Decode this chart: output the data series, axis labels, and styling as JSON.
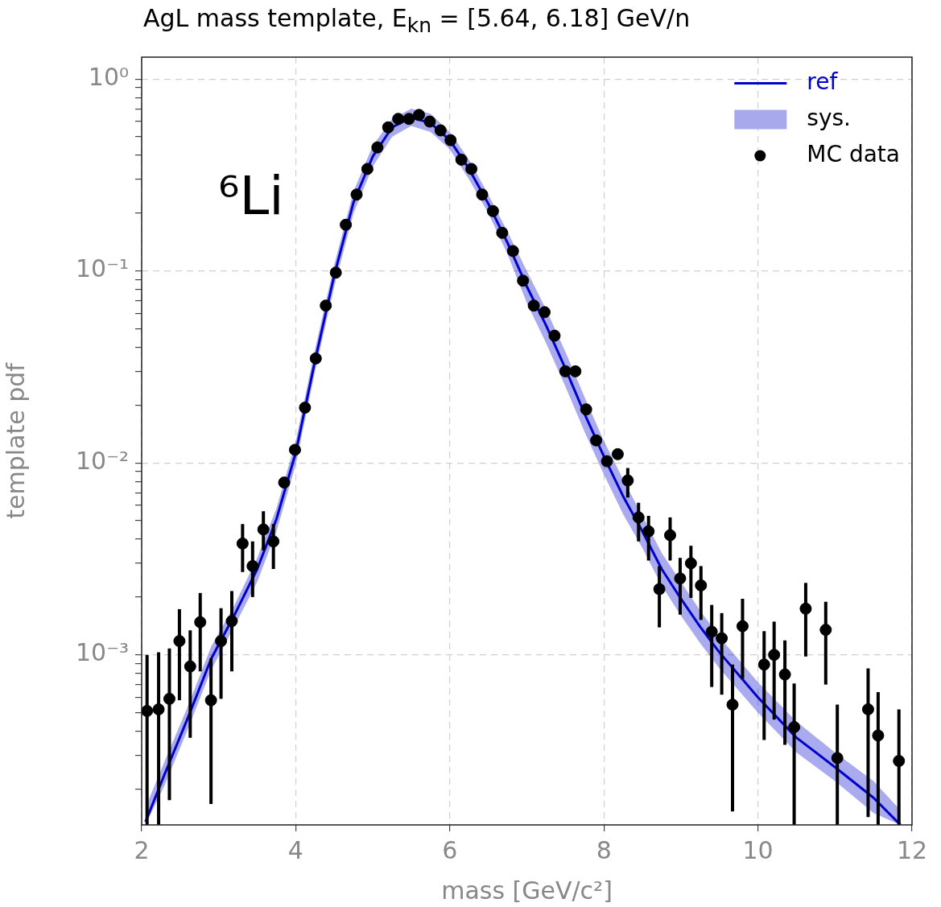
{
  "chart_data": {
    "type": "scatter",
    "title": "AgL mass template, E$_{kn}$ = [5.64, 6.18] GeV/n",
    "xlabel": "mass [GeV/c²]",
    "ylabel": "template pdf",
    "annotations": [
      "⁶Li"
    ],
    "xlim": [
      2,
      12
    ],
    "xticks": [
      2,
      4,
      6,
      8,
      10,
      12
    ],
    "ylim": [
      0.00013,
      1.3
    ],
    "yticks": [
      {
        "value": 0.0002,
        "label": null
      },
      {
        "value": 0.0003,
        "label": null
      },
      {
        "value": 0.0004,
        "label": null
      },
      {
        "value": 0.0005,
        "label": null
      },
      {
        "value": 0.0006,
        "label": null
      },
      {
        "value": 0.0007,
        "label": null
      },
      {
        "value": 0.0008,
        "label": null
      },
      {
        "value": 0.0009,
        "label": null
      },
      {
        "value": 0.001,
        "label": "10⁻³"
      },
      {
        "value": 0.002,
        "label": null
      },
      {
        "value": 0.003,
        "label": null
      },
      {
        "value": 0.004,
        "label": null
      },
      {
        "value": 0.005,
        "label": null
      },
      {
        "value": 0.006,
        "label": null
      },
      {
        "value": 0.007,
        "label": null
      },
      {
        "value": 0.008,
        "label": null
      },
      {
        "value": 0.009,
        "label": null
      },
      {
        "value": 0.01,
        "label": "10⁻²"
      },
      {
        "value": 0.02,
        "label": null
      },
      {
        "value": 0.03,
        "label": null
      },
      {
        "value": 0.04,
        "label": null
      },
      {
        "value": 0.05,
        "label": null
      },
      {
        "value": 0.06,
        "label": null
      },
      {
        "value": 0.07,
        "label": null
      },
      {
        "value": 0.08,
        "label": null
      },
      {
        "value": 0.09,
        "label": null
      },
      {
        "value": 0.1,
        "label": "10⁻¹"
      },
      {
        "value": 0.2,
        "label": null
      },
      {
        "value": 0.3,
        "label": null
      },
      {
        "value": 0.4,
        "label": null
      },
      {
        "value": 0.5,
        "label": null
      },
      {
        "value": 0.6,
        "label": null
      },
      {
        "value": 0.7,
        "label": null
      },
      {
        "value": 0.8,
        "label": null
      },
      {
        "value": 0.9,
        "label": null
      },
      {
        "value": 1,
        "label": "10⁰"
      }
    ],
    "log": "y",
    "grid": true,
    "legend": "top right",
    "series": [
      {
        "name": "ref",
        "type": "line",
        "color": "#0000cc",
        "x": [
          2.05,
          2.3,
          2.6,
          2.9,
          3.2,
          3.5,
          3.75,
          4.0,
          4.25,
          4.5,
          4.75,
          5.0,
          5.25,
          5.5,
          5.75,
          6.0,
          6.25,
          6.5,
          6.75,
          7.0,
          7.25,
          7.5,
          7.75,
          8.0,
          8.25,
          8.5,
          8.75,
          9.0,
          9.25,
          9.5,
          10.0,
          10.5,
          11.0,
          11.5,
          11.85
        ],
        "values": [
          0.000135,
          0.00024,
          0.00047,
          0.00095,
          0.0016,
          0.0028,
          0.0051,
          0.0113,
          0.034,
          0.095,
          0.228,
          0.395,
          0.56,
          0.63,
          0.59,
          0.48,
          0.34,
          0.224,
          0.14,
          0.083,
          0.052,
          0.031,
          0.018,
          0.0108,
          0.0067,
          0.0044,
          0.0028,
          0.00196,
          0.0014,
          0.00103,
          0.0006,
          0.00037,
          0.00026,
          0.00018,
          0.00013
        ],
        "upper": [
          0.00016,
          0.00028,
          0.00054,
          0.0011,
          0.0018,
          0.0032,
          0.0058,
          0.013,
          0.039,
          0.108,
          0.26,
          0.45,
          0.62,
          0.7,
          0.66,
          0.53,
          0.38,
          0.25,
          0.16,
          0.1,
          0.063,
          0.038,
          0.022,
          0.013,
          0.0082,
          0.0053,
          0.0034,
          0.0024,
          0.0017,
          0.00124,
          0.00072,
          0.00045,
          0.00031,
          0.00022,
          0.000155
        ],
        "lower": [
          0.00013,
          0.00021,
          0.00041,
          0.00083,
          0.0014,
          0.0024,
          0.0044,
          0.0098,
          0.03,
          0.083,
          0.2,
          0.35,
          0.5,
          0.57,
          0.53,
          0.43,
          0.3,
          0.2,
          0.122,
          0.068,
          0.042,
          0.025,
          0.0145,
          0.0087,
          0.0054,
          0.0036,
          0.0023,
          0.0016,
          0.00115,
          0.00085,
          0.0005,
          0.00031,
          0.00022,
          0.00015,
          0.00013
        ]
      },
      {
        "name": "sys.",
        "type": "area",
        "color": "#a8a8ec"
      },
      {
        "name": "MC data",
        "marker": "circle",
        "color": "#000000",
        "x": [
          2.07,
          2.22,
          2.36,
          2.49,
          2.63,
          2.76,
          2.9,
          3.03,
          3.17,
          3.31,
          3.44,
          3.58,
          3.71,
          3.85,
          3.99,
          4.12,
          4.26,
          4.39,
          4.52,
          4.65,
          4.79,
          4.93,
          5.06,
          5.2,
          5.33,
          5.47,
          5.6,
          5.74,
          5.88,
          6.01,
          6.15,
          6.28,
          6.42,
          6.56,
          6.68,
          6.82,
          6.95,
          7.09,
          7.23,
          7.36,
          7.5,
          7.63,
          7.77,
          7.9,
          8.04,
          8.18,
          8.31,
          8.45,
          8.58,
          8.72,
          8.86,
          8.99,
          9.13,
          9.26,
          9.4,
          9.53,
          9.67,
          9.8,
          10.08,
          10.21,
          10.35,
          10.47,
          10.62,
          10.88,
          11.03,
          11.43,
          11.56,
          11.83
        ],
        "values": [
          0.00051,
          0.00052,
          0.00059,
          0.00118,
          0.00087,
          0.00148,
          0.00058,
          0.00118,
          0.0015,
          0.0038,
          0.0029,
          0.0045,
          0.0039,
          0.0079,
          0.0117,
          0.0194,
          0.035,
          0.066,
          0.098,
          0.174,
          0.25,
          0.34,
          0.44,
          0.56,
          0.62,
          0.62,
          0.65,
          0.6,
          0.54,
          0.48,
          0.38,
          0.34,
          0.25,
          0.205,
          0.158,
          0.127,
          0.089,
          0.066,
          0.061,
          0.046,
          0.03,
          0.03,
          0.019,
          0.0131,
          0.0102,
          0.0111,
          0.0081,
          0.0052,
          0.0044,
          0.0022,
          0.0042,
          0.0025,
          0.003,
          0.0023,
          0.00132,
          0.00122,
          0.00055,
          0.00141,
          0.00089,
          0.001,
          0.00079,
          0.00042,
          0.00174,
          0.00135,
          0.00029,
          0.00052,
          0.00038,
          0.00028
        ],
        "errors": [
          [
            0.00013,
            0.001
          ],
          [
            0.00013,
            0.00103
          ],
          [
            0.000175,
            0.00108
          ],
          [
            0.00058,
            0.00173
          ],
          [
            0.00037,
            0.00134
          ],
          [
            0.00082,
            0.0021
          ],
          [
            0.000167,
            0.00096
          ],
          [
            0.00059,
            0.00175
          ],
          [
            0.00082,
            0.00215
          ],
          [
            0.0027,
            0.0048
          ],
          [
            0.002,
            0.0039
          ],
          [
            0.0035,
            0.0056
          ],
          [
            0.0028,
            0.0048
          ],
          null,
          null,
          null,
          null,
          null,
          null,
          null,
          null,
          null,
          null,
          null,
          null,
          null,
          null,
          null,
          null,
          null,
          null,
          null,
          null,
          null,
          null,
          null,
          null,
          null,
          null,
          null,
          null,
          null,
          null,
          null,
          null,
          null,
          [
            0.0066,
            0.0094
          ],
          [
            0.0039,
            0.0062
          ],
          [
            0.0031,
            0.0053
          ],
          [
            0.00139,
            0.0029
          ],
          [
            0.0031,
            0.0052
          ],
          [
            0.00162,
            0.0032
          ],
          [
            0.00198,
            0.0037
          ],
          [
            0.00152,
            0.0029
          ],
          [
            0.00068,
            0.00182
          ],
          [
            0.00062,
            0.00165
          ],
          [
            0.000153,
            0.00089
          ],
          [
            0.00075,
            0.00196
          ],
          [
            0.00036,
            0.00133
          ],
          [
            0.00046,
            0.00149
          ],
          [
            0.00034,
            0.00119
          ],
          [
            0.00013,
            0.00071
          ],
          [
            0.00098,
            0.00237
          ],
          [
            0.0007,
            0.00189
          ],
          [
            0.00013,
            0.00055
          ],
          [
            0.000143,
            0.00085
          ],
          [
            0.00013,
            0.00064
          ],
          [
            0.00013,
            0.00052
          ]
        ]
      }
    ]
  }
}
